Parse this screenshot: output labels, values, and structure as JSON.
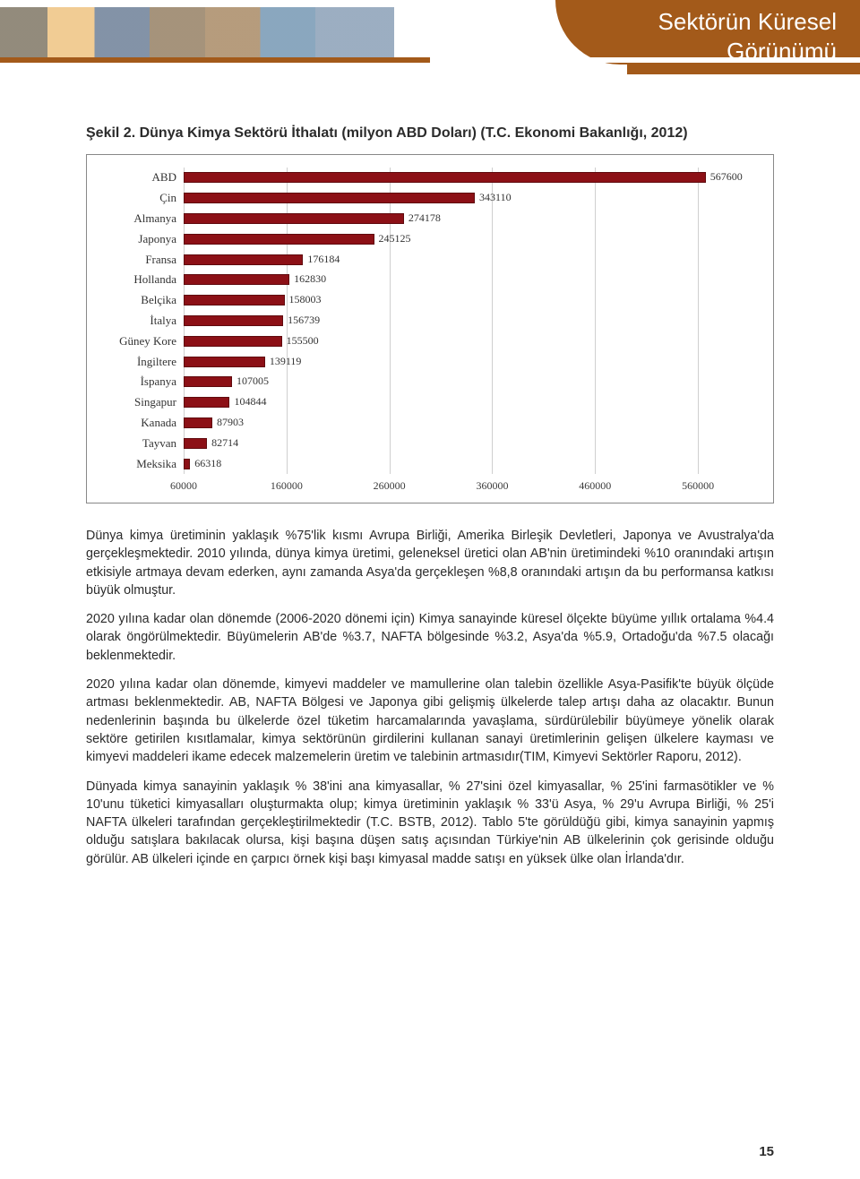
{
  "header": {
    "title_line1": "Sektörün Küresel",
    "title_line2": "Görünümü"
  },
  "figure": {
    "title": "Şekil 2. Dünya Kimya Sektörü İthalatı (milyon ABD Doları) (T.C. Ekonomi Bakanlığı, 2012)",
    "type": "bar-horizontal",
    "bar_color": "#8c1016",
    "bar_border": "#600a0e",
    "grid_color": "#cfcfcf",
    "box_border": "#888888",
    "text_color": "#333333",
    "font_family_data": "Georgia, serif",
    "x_min": 60000,
    "x_max": 600000,
    "x_ticks": [
      60000,
      160000,
      260000,
      360000,
      460000,
      560000
    ],
    "categories": [
      {
        "label": "ABD",
        "value": 567600
      },
      {
        "label": "Çin",
        "value": 343110
      },
      {
        "label": "Almanya",
        "value": 274178
      },
      {
        "label": "Japonya",
        "value": 245125
      },
      {
        "label": "Fransa",
        "value": 176184
      },
      {
        "label": "Hollanda",
        "value": 162830
      },
      {
        "label": "Belçika",
        "value": 158003
      },
      {
        "label": "İtalya",
        "value": 156739
      },
      {
        "label": "Güney Kore",
        "value": 155500
      },
      {
        "label": "İngiltere",
        "value": 139119
      },
      {
        "label": "İspanya",
        "value": 107005
      },
      {
        "label": "Singapur",
        "value": 104844
      },
      {
        "label": "Kanada",
        "value": 87903
      },
      {
        "label": "Tayvan",
        "value": 82714
      },
      {
        "label": "Meksika",
        "value": 66318
      }
    ]
  },
  "body": {
    "p1": "Dünya kimya üretiminin yaklaşık %75'lik kısmı Avrupa Birliği, Amerika Birleşik Devletleri, Japonya ve Avustralya'da gerçekleşmektedir. 2010 yılında, dünya kimya üretimi, geleneksel üretici olan AB'nin üretimindeki %10 oranındaki artışın etkisiyle artmaya devam ederken, aynı zamanda Asya'da gerçekleşen %8,8 oranındaki artışın da bu performansa katkısı büyük olmuştur.",
    "p2": "2020 yılına kadar olan dönemde (2006-2020 dönemi için) Kimya sanayinde küresel ölçekte büyüme yıllık ortalama %4.4 olarak öngörülmektedir. Büyümelerin AB'de %3.7, NAFTA bölgesinde %3.2, Asya'da %5.9, Ortadoğu'da %7.5 olacağı beklenmektedir.",
    "p3": "2020 yılına kadar olan dönemde, kimyevi maddeler ve mamullerine olan talebin özellikle Asya-Pasifik'te büyük ölçüde artması beklenmektedir. AB, NAFTA Bölgesi ve Japonya gibi gelişmiş ülkelerde talep artışı daha az olacaktır. Bunun nedenlerinin başında bu ülkelerde özel tüketim harcamalarında yavaşlama, sürdürülebilir büyümeye yönelik olarak sektöre getirilen kısıtlamalar, kimya sektörünün girdilerini kullanan sanayi üretimlerinin gelişen ülkelere kayması ve kimyevi maddeleri ikame edecek malzemelerin üretim ve talebinin artmasıdır(TIM, Kimyevi Sektörler Raporu, 2012).",
    "p4": "Dünyada kimya sanayinin yaklaşık % 38'ini ana kimyasallar, % 27'sini özel kimyasallar, % 25'ini farmasötikler ve % 10'unu tüketici kimyasalları oluşturmakta olup; kimya üretiminin yaklaşık % 33'ü Asya, % 29'u Avrupa Birliği, % 25'i NAFTA ülkeleri tarafından gerçekleştirilmektedir (T.C. BSTB, 2012). Tablo 5'te görüldüğü gibi, kimya sanayinin yapmış olduğu satışlara bakılacak olursa, kişi başına düşen satış açısından Türkiye'nin AB ülkelerinin çok gerisinde olduğu görülür. AB ülkeleri içinde en çarpıcı örnek kişi başı kimyasal madde satışı en yüksek ülke olan İrlanda'dır."
  },
  "page_number": "15"
}
